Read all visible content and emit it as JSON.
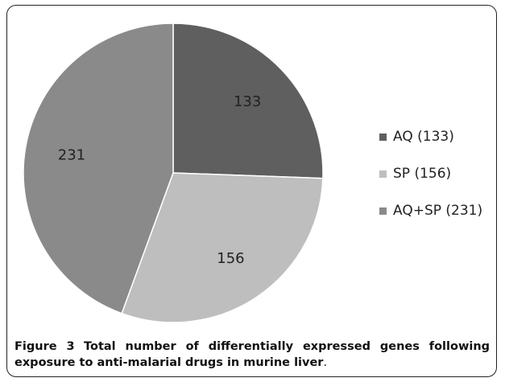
{
  "chart_data": {
    "type": "pie",
    "slices": [
      {
        "name": "AQ (133)",
        "value": 133,
        "label": "133",
        "color": "#5f5f5f"
      },
      {
        "name": "SP (156)",
        "value": 156,
        "label": "156",
        "color": "#bebebe"
      },
      {
        "name": "AQ+SP (231)",
        "value": 231,
        "label": "231",
        "color": "#8a8a8a"
      }
    ],
    "legend_position": "right"
  },
  "caption": {
    "figure_label": "Figure 3",
    "text": "Total number of differentially expressed genes following exposure to anti-malarial drugs in murine liver",
    "end": "."
  }
}
